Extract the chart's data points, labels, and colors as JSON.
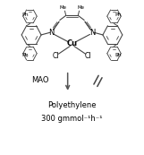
{
  "bg_color": "#ffffff",
  "fig_width": 1.61,
  "fig_height": 1.73,
  "dpi": 100,
  "text_color": "#000000",
  "stroke_color": "#444444",
  "arrow_color": "#555555",
  "mao_text": "MAO",
  "product_line1": "Polyethylene",
  "product_line2": "300 gmmol⁻¹h⁻¹"
}
